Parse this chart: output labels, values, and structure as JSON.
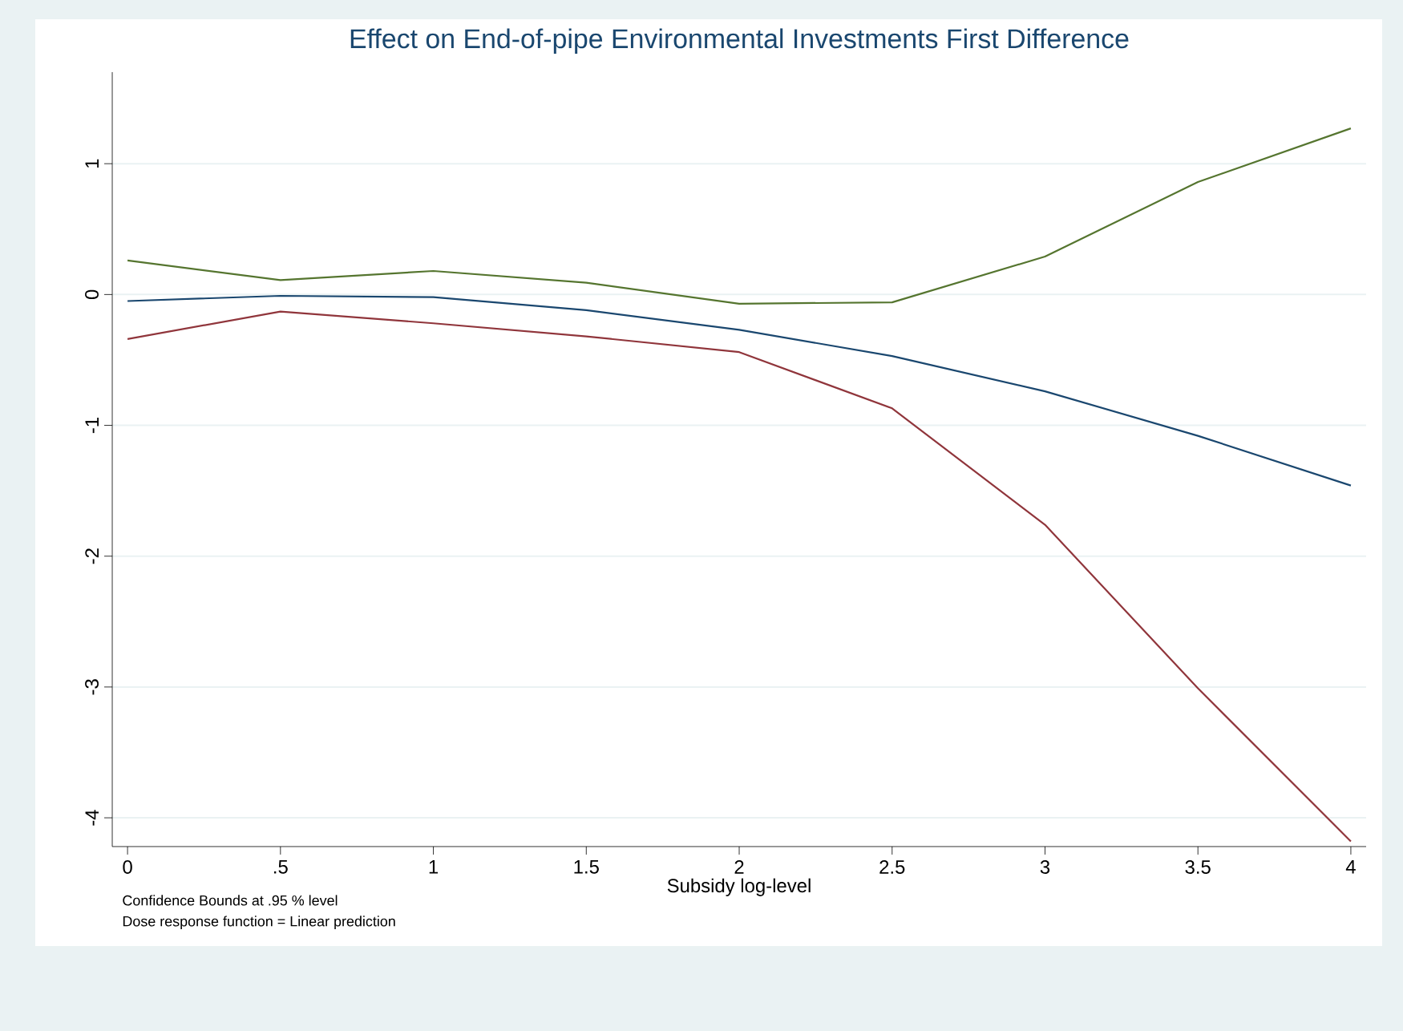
{
  "chart_data": {
    "type": "line",
    "title": "Effect on End-of-pipe Environmental Investments First Difference",
    "xlabel": "Subsidy log-level",
    "x": [
      0,
      0.5,
      1,
      1.5,
      2,
      2.5,
      3,
      3.5,
      4
    ],
    "series": [
      {
        "color": "#55752f",
        "values": [
          0.26,
          0.11,
          0.18,
          0.09,
          -0.07,
          -0.06,
          0.29,
          0.86,
          1.27
        ]
      },
      {
        "color": "#1a476f",
        "values": [
          -0.05,
          -0.01,
          -0.02,
          -0.12,
          -0.27,
          -0.47,
          -0.74,
          -1.08,
          -1.46
        ]
      },
      {
        "color": "#90353b",
        "values": [
          -0.34,
          -0.13,
          -0.22,
          -0.32,
          -0.44,
          -0.87,
          -1.76,
          -3.01,
          -4.18
        ]
      }
    ],
    "xlim": [
      -0.05,
      4.05
    ],
    "ylim": [
      -4.22,
      1.7
    ],
    "xticks": [
      0,
      {
        "value": 0.5,
        "label": ".5"
      },
      1,
      {
        "value": 1.5,
        "label": "1.5"
      },
      2,
      {
        "value": 2.5,
        "label": "2.5"
      },
      3,
      {
        "value": 3.5,
        "label": "3.5"
      },
      4
    ],
    "yticks": [
      -4,
      -3,
      -2,
      -1,
      0,
      1
    ],
    "grid": "y",
    "marker": "none",
    "line_style": "solid",
    "annotations": [
      "Confidence Bounds at .95 % level",
      "Dose response function = Linear prediction"
    ]
  }
}
